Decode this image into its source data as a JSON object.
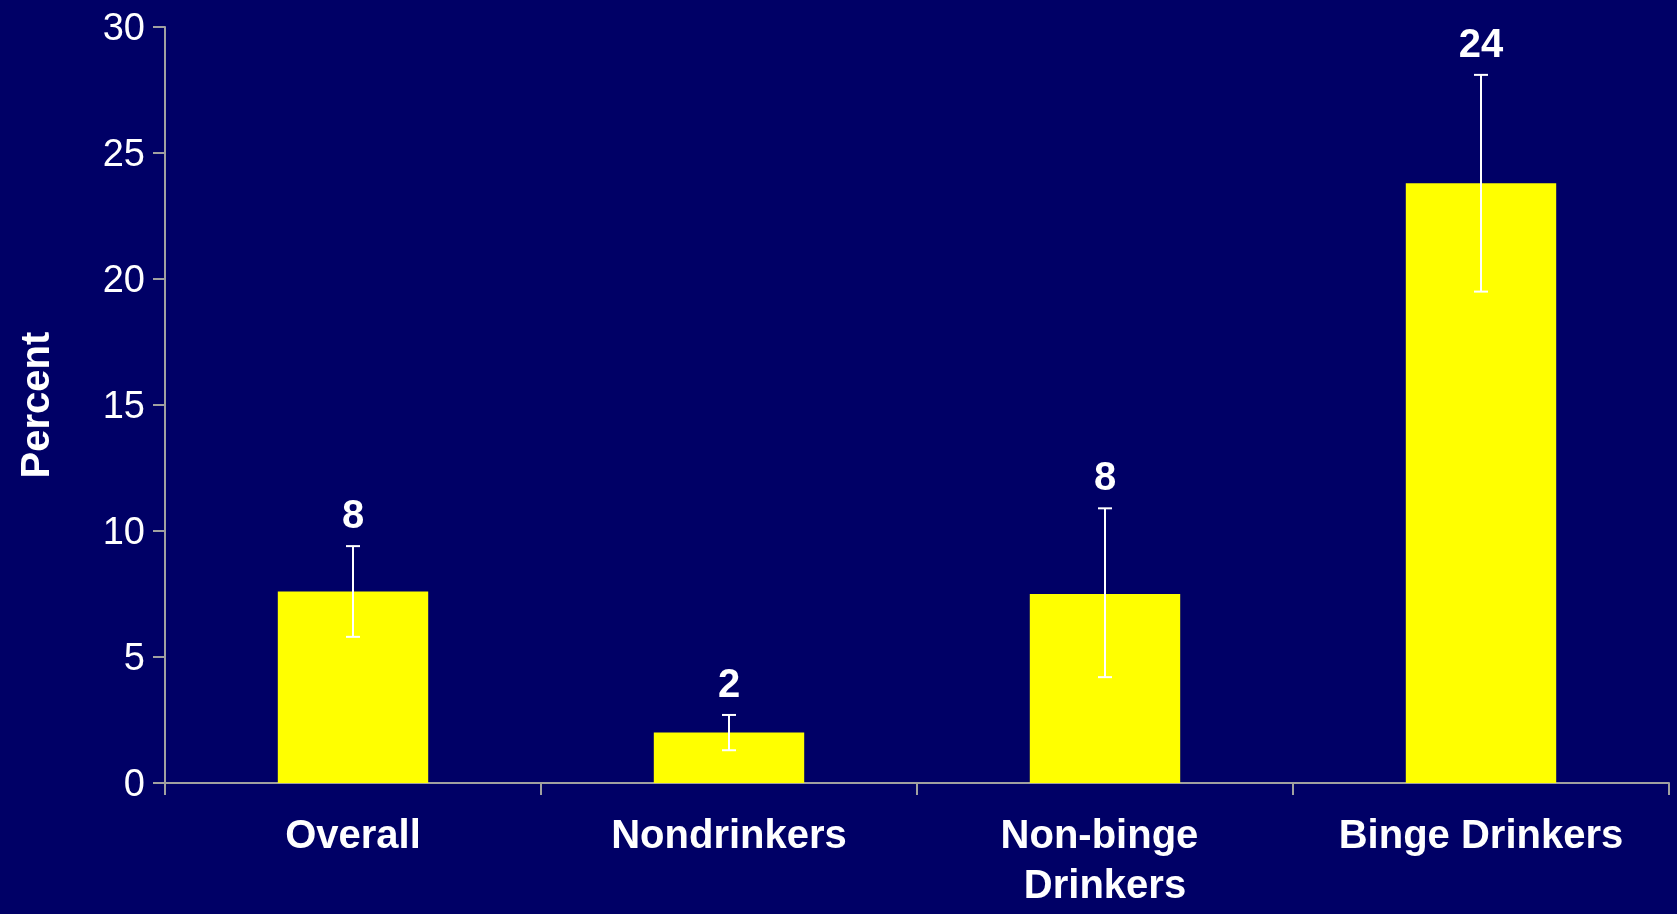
{
  "chart_data": {
    "type": "bar",
    "ylabel": "Percent",
    "categories": [
      "Overall",
      "Nondrinkers",
      "Non-binge Drinkers",
      "Binge Drinkers"
    ],
    "values": [
      7.6,
      2.0,
      7.5,
      23.8
    ],
    "errors": [
      [
        5.8,
        9.4
      ],
      [
        1.3,
        2.7
      ],
      [
        4.2,
        10.9
      ],
      [
        19.5,
        28.1
      ]
    ],
    "value_labels": [
      "8",
      "2",
      "8",
      "24"
    ],
    "color": "#ffff00",
    "ylim": [
      0,
      30
    ],
    "yticks": [
      0,
      5,
      10,
      15,
      20,
      25,
      30
    ],
    "grid": false
  }
}
